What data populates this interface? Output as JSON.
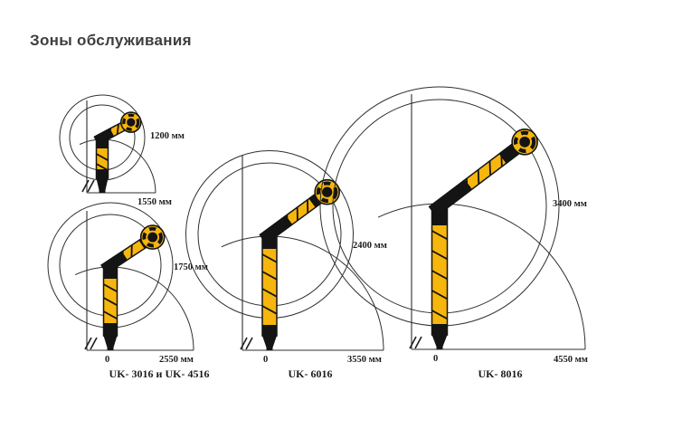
{
  "title": "Зоны обслуживания",
  "diagrams": [
    {
      "id": "uk3016-small",
      "radius_label": "1200 мм",
      "reach_label": "1550 мм"
    },
    {
      "id": "uk3016-4516",
      "radius_label": "1750 мм",
      "zero_label": "0",
      "reach_label": "2550 мм",
      "caption": "UK- 3016 и UK- 4516"
    },
    {
      "id": "uk6016",
      "radius_label": "2400 мм",
      "zero_label": "0",
      "reach_label": "3550 мм",
      "caption": "UK- 6016"
    },
    {
      "id": "uk8016",
      "radius_label": "3400 мм",
      "zero_label": "0",
      "reach_label": "4550 мм",
      "caption": "UK- 8016"
    }
  ],
  "colors": {
    "arm_yellow": "#F7B60D",
    "arm_black": "#141414",
    "line": "#2F2F2F",
    "label_text": "#1B1B1B",
    "title_text": "#3E3E3E",
    "background": "#FFFFFF"
  }
}
